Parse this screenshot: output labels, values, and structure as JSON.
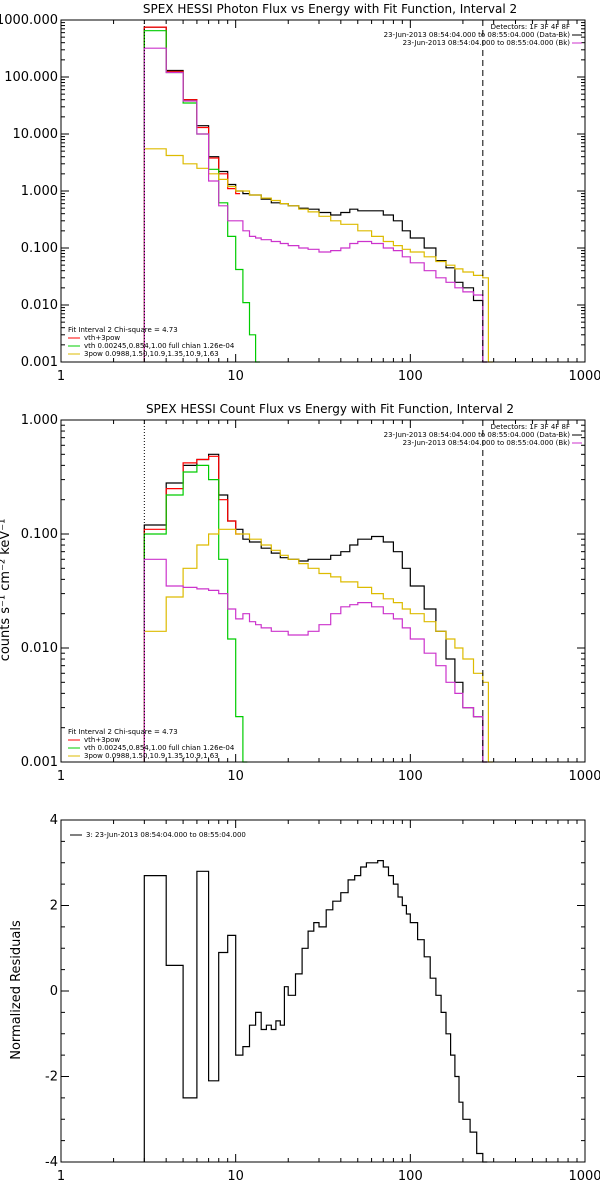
{
  "chart_data": [
    {
      "type": "line",
      "title": "SPEX HESSI Photon Flux vs Energy with Fit Function, Interval 2",
      "xscale": "log",
      "yscale": "log",
      "xlim": [
        1,
        1000
      ],
      "ylim": [
        0.001,
        1000
      ],
      "xticks": [
        "1",
        "10",
        "100",
        "1000"
      ],
      "yticks": [
        "0.001",
        "0.010",
        "0.100",
        "1.000",
        "10.000",
        "100.000",
        "1000.000"
      ],
      "ytick_values": [
        0.001,
        0.01,
        0.1,
        1,
        10,
        100,
        1000
      ],
      "ylabel": "",
      "legend_top_right": {
        "detectors": "Detectors: 1F 3F 4F 8F",
        "entries": [
          {
            "label": "23-Jun-2013 08:54:04.000 to 08:55:04.000 (Data-Bk)",
            "color": "#000000"
          },
          {
            "label": "23-Jun-2013 08:54:04.000 to 08:55:04.000 (Bk)",
            "color": "#cc33cc"
          }
        ]
      },
      "legend_bottom_left": {
        "header": "Fit Interval  2    Chi-square = 4.73",
        "entries": [
          {
            "label": "vth+3pow",
            "color": "#ff0000"
          },
          {
            "label": "vth 0.00245,0.854,1.00  full chian 1.26e-04",
            "color": "#00cc00"
          },
          {
            "label": "3pow 0.0988,1.50,10.9,1.35,10.9,1.63",
            "color": "#ddbb00"
          }
        ]
      },
      "vlines": [
        {
          "x": 3.0,
          "style": "dotted"
        },
        {
          "x": 260,
          "style": "dashed"
        }
      ],
      "series": [
        {
          "role": "data-bk",
          "color": "#000000",
          "x": [
            3,
            4,
            5,
            6,
            7,
            8,
            9,
            10,
            11,
            12,
            14,
            16,
            18,
            20,
            23,
            26,
            30,
            35,
            40,
            45,
            50,
            60,
            70,
            80,
            90,
            100,
            120,
            140,
            160,
            180,
            200,
            230,
            260
          ],
          "y": [
            750,
            130,
            40,
            14,
            4.0,
            2.2,
            1.3,
            1.0,
            0.9,
            0.85,
            0.72,
            0.62,
            0.6,
            0.55,
            0.5,
            0.48,
            0.42,
            0.38,
            0.42,
            0.48,
            0.45,
            0.45,
            0.38,
            0.3,
            0.2,
            0.15,
            0.1,
            0.06,
            0.045,
            0.025,
            0.02,
            0.012,
            0.001
          ]
        },
        {
          "role": "vth+3pow",
          "color": "#ff0000",
          "x": [
            3,
            4,
            5,
            6,
            7,
            8,
            9,
            10
          ],
          "y": [
            750,
            125,
            40,
            13,
            3.8,
            2.0,
            1.1,
            0.9
          ]
        },
        {
          "role": "vth",
          "color": "#00cc00",
          "x": [
            3,
            4,
            5,
            6,
            7,
            8,
            9,
            10,
            11,
            12,
            13
          ],
          "y": [
            650,
            120,
            35,
            10,
            2.4,
            0.62,
            0.16,
            0.042,
            0.011,
            0.003,
            0.001
          ]
        },
        {
          "role": "3pow",
          "color": "#ddbb00",
          "x": [
            3,
            4,
            5,
            6,
            7,
            8,
            9,
            10,
            12,
            14,
            16,
            18,
            20,
            23,
            26,
            30,
            35,
            40,
            50,
            60,
            70,
            80,
            90,
            100,
            120,
            140,
            160,
            180,
            200,
            230,
            260,
            280
          ],
          "y": [
            5.5,
            4.2,
            3.0,
            2.5,
            2.0,
            1.6,
            1.2,
            1.0,
            0.85,
            0.75,
            0.68,
            0.6,
            0.55,
            0.48,
            0.43,
            0.36,
            0.3,
            0.26,
            0.2,
            0.16,
            0.13,
            0.11,
            0.095,
            0.085,
            0.07,
            0.058,
            0.05,
            0.043,
            0.038,
            0.033,
            0.03,
            0.001
          ]
        },
        {
          "role": "bk",
          "color": "#cc33cc",
          "x": [
            3,
            4,
            5,
            6,
            7,
            8,
            9,
            10,
            11,
            12,
            13,
            14,
            16,
            18,
            20,
            23,
            26,
            30,
            35,
            40,
            45,
            50,
            60,
            70,
            80,
            90,
            100,
            120,
            140,
            160,
            180,
            200,
            230,
            260
          ],
          "y": [
            320,
            120,
            38,
            10,
            1.5,
            0.55,
            0.3,
            0.3,
            0.2,
            0.16,
            0.15,
            0.14,
            0.13,
            0.12,
            0.11,
            0.1,
            0.095,
            0.085,
            0.09,
            0.1,
            0.12,
            0.13,
            0.12,
            0.1,
            0.09,
            0.07,
            0.055,
            0.04,
            0.03,
            0.025,
            0.02,
            0.017,
            0.015,
            0.001
          ]
        }
      ]
    },
    {
      "type": "line",
      "title": "SPEX HESSI Count Flux vs Energy with Fit Function, Interval 2",
      "xscale": "log",
      "yscale": "log",
      "xlim": [
        1,
        1000
      ],
      "ylim": [
        0.001,
        1
      ],
      "xticks": [
        "1",
        "10",
        "100",
        "1000"
      ],
      "yticks": [
        "0.001",
        "0.010",
        "0.100",
        "1.000"
      ],
      "ytick_values": [
        0.001,
        0.01,
        0.1,
        1
      ],
      "ylabel": "counts s⁻¹ cm⁻² keV⁻¹",
      "legend_top_right": {
        "detectors": "Detectors: 1F 3F 4F 8F",
        "entries": [
          {
            "label": "23-Jun-2013 08:54:04.000 to 08:55:04.000 (Data-Bk)",
            "color": "#000000"
          },
          {
            "label": "23-Jun-2013 08:54:04.000 to 08:55:04.000 (Bk)",
            "color": "#cc33cc"
          }
        ]
      },
      "legend_bottom_left": {
        "header": "Fit Interval  2    Chi-square = 4.73",
        "entries": [
          {
            "label": "vth+3pow",
            "color": "#ff0000"
          },
          {
            "label": "vth 0.00245,0.854,1.00  full chian 1.26e-04",
            "color": "#00cc00"
          },
          {
            "label": "3pow 0.0988,1.50,10.9,1.35,10.9,1.63",
            "color": "#ddbb00"
          }
        ]
      },
      "vlines": [
        {
          "x": 3.0,
          "style": "dotted"
        },
        {
          "x": 260,
          "style": "dashed"
        }
      ],
      "series": [
        {
          "role": "data-bk",
          "color": "#000000",
          "x": [
            3,
            4,
            5,
            6,
            7,
            8,
            9,
            10,
            11,
            12,
            14,
            16,
            18,
            20,
            23,
            26,
            30,
            35,
            40,
            45,
            50,
            60,
            70,
            80,
            90,
            100,
            120,
            140,
            160,
            180,
            200,
            230,
            260
          ],
          "y": [
            0.12,
            0.28,
            0.4,
            0.45,
            0.5,
            0.22,
            0.13,
            0.11,
            0.09,
            0.085,
            0.075,
            0.068,
            0.062,
            0.06,
            0.058,
            0.06,
            0.06,
            0.065,
            0.07,
            0.08,
            0.09,
            0.095,
            0.085,
            0.07,
            0.05,
            0.035,
            0.022,
            0.014,
            0.008,
            0.005,
            0.003,
            0.0025,
            0.001
          ]
        },
        {
          "role": "vth+3pow",
          "color": "#ff0000",
          "x": [
            3,
            4,
            5,
            6,
            7,
            8,
            9,
            10
          ],
          "y": [
            0.11,
            0.25,
            0.42,
            0.45,
            0.48,
            0.2,
            0.13,
            0.1
          ]
        },
        {
          "role": "vth",
          "color": "#00cc00",
          "x": [
            3,
            4,
            5,
            6,
            7,
            8,
            9,
            10,
            11
          ],
          "y": [
            0.1,
            0.22,
            0.35,
            0.4,
            0.3,
            0.06,
            0.012,
            0.0025,
            0.001
          ]
        },
        {
          "role": "3pow",
          "color": "#ddbb00",
          "x": [
            3,
            4,
            5,
            6,
            7,
            8,
            9,
            10,
            12,
            14,
            16,
            18,
            20,
            23,
            26,
            30,
            35,
            40,
            50,
            60,
            70,
            80,
            90,
            100,
            120,
            140,
            160,
            180,
            200,
            230,
            260,
            280
          ],
          "y": [
            0.014,
            0.028,
            0.05,
            0.08,
            0.1,
            0.11,
            0.11,
            0.1,
            0.09,
            0.08,
            0.072,
            0.065,
            0.06,
            0.055,
            0.05,
            0.045,
            0.042,
            0.038,
            0.034,
            0.03,
            0.027,
            0.025,
            0.022,
            0.02,
            0.017,
            0.014,
            0.012,
            0.01,
            0.008,
            0.006,
            0.005,
            0.001
          ]
        },
        {
          "role": "bk",
          "color": "#cc33cc",
          "x": [
            3,
            4,
            5,
            6,
            7,
            8,
            9,
            10,
            11,
            12,
            13,
            14,
            16,
            18,
            20,
            23,
            26,
            30,
            35,
            40,
            45,
            50,
            60,
            70,
            80,
            90,
            100,
            120,
            140,
            160,
            180,
            200,
            230,
            260
          ],
          "y": [
            0.06,
            0.035,
            0.034,
            0.033,
            0.032,
            0.03,
            0.022,
            0.018,
            0.02,
            0.017,
            0.016,
            0.015,
            0.014,
            0.014,
            0.013,
            0.013,
            0.014,
            0.016,
            0.02,
            0.023,
            0.024,
            0.025,
            0.023,
            0.02,
            0.018,
            0.015,
            0.012,
            0.009,
            0.007,
            0.005,
            0.004,
            0.003,
            0.0025,
            0.001
          ]
        }
      ]
    },
    {
      "type": "line",
      "title": "",
      "xscale": "log",
      "yscale": "linear",
      "xlim": [
        1,
        1000
      ],
      "ylim": [
        -4,
        4
      ],
      "xticks": [
        "1",
        "10",
        "100",
        "1000"
      ],
      "yticks": [
        "-4",
        "-2",
        "0",
        "2",
        "4"
      ],
      "ytick_values": [
        -4,
        -2,
        0,
        2,
        4
      ],
      "ylabel": "Normalized Residuals",
      "legend": {
        "label": "3: 23-Jun-2013 08:54:04.000 to 08:55:04.000",
        "color": "#000000"
      },
      "series": [
        {
          "role": "residuals",
          "color": "#000000",
          "x": [
            3,
            4,
            5,
            6,
            7,
            8,
            9,
            10,
            11,
            12,
            13,
            14,
            15,
            16,
            17,
            18,
            19,
            20,
            22,
            24,
            26,
            28,
            30,
            33,
            36,
            40,
            44,
            48,
            52,
            56,
            60,
            65,
            70,
            75,
            80,
            85,
            90,
            95,
            100,
            110,
            120,
            130,
            140,
            150,
            160,
            170,
            180,
            190,
            200,
            220,
            240,
            260
          ],
          "y": [
            2.7,
            0.6,
            -2.5,
            2.8,
            -2.1,
            0.9,
            1.3,
            -1.5,
            -1.3,
            -0.8,
            -0.5,
            -0.9,
            -0.8,
            -0.9,
            -0.7,
            -0.8,
            0.1,
            -0.1,
            0.4,
            1.0,
            1.4,
            1.6,
            1.5,
            1.9,
            2.1,
            2.3,
            2.6,
            2.7,
            2.9,
            3.0,
            3.0,
            3.05,
            2.9,
            2.7,
            2.5,
            2.2,
            2.0,
            1.8,
            1.6,
            1.2,
            0.8,
            0.3,
            -0.1,
            -0.5,
            -1.0,
            -1.5,
            -2.0,
            -2.6,
            -3.0,
            -3.3,
            -3.8,
            -4.0
          ]
        }
      ]
    }
  ]
}
